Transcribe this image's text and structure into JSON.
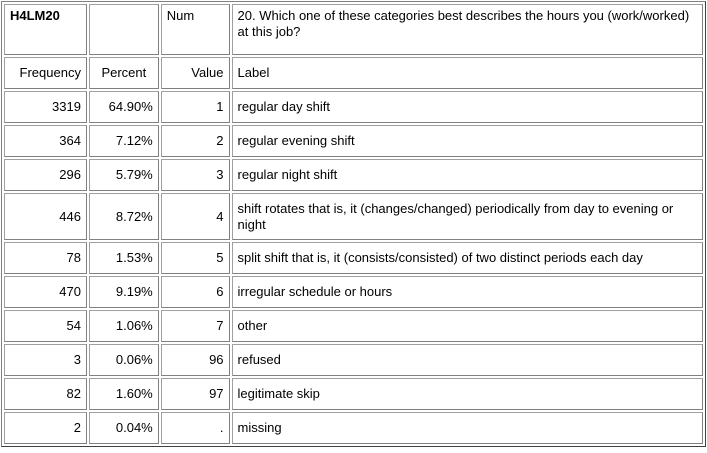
{
  "header": {
    "variable": "H4LM20",
    "blank": "",
    "type": "Num",
    "question": "20. Which one of these categories best describes the hours you (work/worked) at this job?"
  },
  "columns": {
    "frequency": "Frequency",
    "percent": "Percent",
    "value": "Value",
    "label": "Label"
  },
  "rows": [
    {
      "frequency": "3319",
      "percent": "64.90%",
      "value": "1",
      "label": "regular day shift"
    },
    {
      "frequency": "364",
      "percent": "7.12%",
      "value": "2",
      "label": "regular evening shift"
    },
    {
      "frequency": "296",
      "percent": "5.79%",
      "value": "3",
      "label": "regular night shift"
    },
    {
      "frequency": "446",
      "percent": "8.72%",
      "value": "4",
      "label": "shift rotates that is, it (changes/changed) periodically from day to evening or night"
    },
    {
      "frequency": "78",
      "percent": "1.53%",
      "value": "5",
      "label": "split shift that is, it (consists/consisted) of two distinct periods each day"
    },
    {
      "frequency": "470",
      "percent": "9.19%",
      "value": "6",
      "label": "irregular schedule or hours"
    },
    {
      "frequency": "54",
      "percent": "1.06%",
      "value": "7",
      "label": "other"
    },
    {
      "frequency": "3",
      "percent": "0.06%",
      "value": "96",
      "label": "refused"
    },
    {
      "frequency": "82",
      "percent": "1.60%",
      "value": "97",
      "label": "legitimate skip"
    },
    {
      "frequency": "2",
      "percent": "0.04%",
      "value": ".",
      "label": "missing"
    }
  ]
}
